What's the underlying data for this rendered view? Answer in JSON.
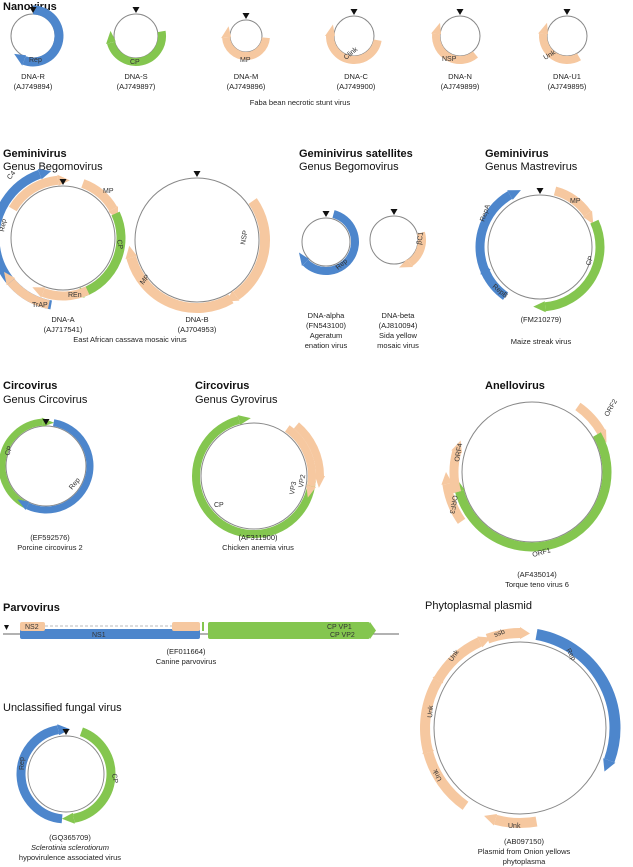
{
  "colors": {
    "blue": "#4d86cc",
    "green": "#84c64f",
    "peach": "#f6c8a0",
    "outline": "#888888"
  },
  "titles": {
    "nanovirus": "Nanovirus",
    "geminivirus1": "Geminivirus",
    "geminivirus1_genus": "Genus Begomovirus",
    "satellites": "Geminivirus satellites",
    "satellites_genus": "Genus Begomovirus",
    "geminivirus2": "Geminivirus",
    "geminivirus2_genus": "Genus Mastrevirus",
    "circovirus1": "Circovirus",
    "circovirus1_genus": "Genus Circovirus",
    "circovirus2": "Circovirus",
    "circovirus2_genus": "Genus Gyrovirus",
    "anellovirus": "Anellovirus",
    "parvovirus": "Parvovirus",
    "phytoplasmal": "Phytoplasmal plasmid",
    "fungal": "Unclassified fungal virus"
  },
  "nano": {
    "items": [
      {
        "name": "DNA-R",
        "acc": "(AJ749894)",
        "gene": "Rep"
      },
      {
        "name": "DNA-S",
        "acc": "(AJ749897)",
        "gene": "CP"
      },
      {
        "name": "DNA-M",
        "acc": "(AJ749896)",
        "gene": "MP"
      },
      {
        "name": "DNA-C",
        "acc": "(AJ749900)",
        "gene": "Clink"
      },
      {
        "name": "DNA-N",
        "acc": "(AJ749899)",
        "gene": "NSP"
      },
      {
        "name": "DNA-U1",
        "acc": "(AJ749895)",
        "gene": "Unk"
      }
    ],
    "species": "Faba bean necrotic stunt virus"
  },
  "acmv": {
    "dnaA": {
      "name": "DNA-A",
      "acc": "(AJ717541)"
    },
    "dnaB": {
      "name": "DNA-B",
      "acc": "(AJ704953)"
    },
    "species": "East African cassava mosaic virus",
    "genes": {
      "c4": "C4",
      "rep": "Rep",
      "mp": "MP",
      "cp": "CP",
      "ren": "REn",
      "trap": "TrAP",
      "nsp": "NSP",
      "mpb": "MP"
    }
  },
  "sat": {
    "alpha": {
      "name": "DNA-alpha",
      "acc": "(FN543100)",
      "species1": "Ageratum",
      "species2": "enation virus",
      "gene": "Rep"
    },
    "beta": {
      "name": "DNA-beta",
      "acc": "(AJ810094)",
      "species1": "Sida yellow",
      "species2": "mosaic virus",
      "gene": "βC1"
    }
  },
  "msv": {
    "acc": "(FM210279)",
    "species": "Maize streak virus",
    "genes": {
      "mp": "MP",
      "repa": "RepA",
      "repb": "RepB",
      "cp": "CP"
    }
  },
  "pcv": {
    "acc": "(EF592576)",
    "species": "Porcine circovirus 2",
    "genes": {
      "cp": "CP",
      "rep": "Rep"
    }
  },
  "cav": {
    "acc": "(AF311900)",
    "species": "Chicken anemia virus",
    "genes": {
      "cp": "CP",
      "vp3": "VP3",
      "vp2": "VP2"
    }
  },
  "ttv": {
    "acc": "(AF435014)",
    "species": "Torque teno virus 6",
    "genes": {
      "orf2": "ORF2",
      "orf4": "ORF4",
      "orf3": "ORF3",
      "orf1": "ORF1"
    }
  },
  "cpv": {
    "acc": "(EF011664)",
    "species": "Canine parvovirus",
    "genes": {
      "ns2": "NS2",
      "ns1": "NS1",
      "vp1": "CP VP1",
      "vp2": "CP VP2"
    }
  },
  "ssh": {
    "acc": "(GQ365709)",
    "species_italic": "Sclerotinia sclerotiorum",
    "species2": "hypovirulence associated virus",
    "genes": {
      "rep": "Rep",
      "cp": "CP"
    }
  },
  "onion": {
    "acc": "(AB097150)",
    "species1": "Plasmid from Onion yellows",
    "species2": "phytoplasma",
    "genes": {
      "ssb": "ssb",
      "rep": "Rep",
      "unk1": "Unk",
      "unk2": "Unk",
      "unk3": "Unk",
      "unk4": "Unk"
    }
  }
}
